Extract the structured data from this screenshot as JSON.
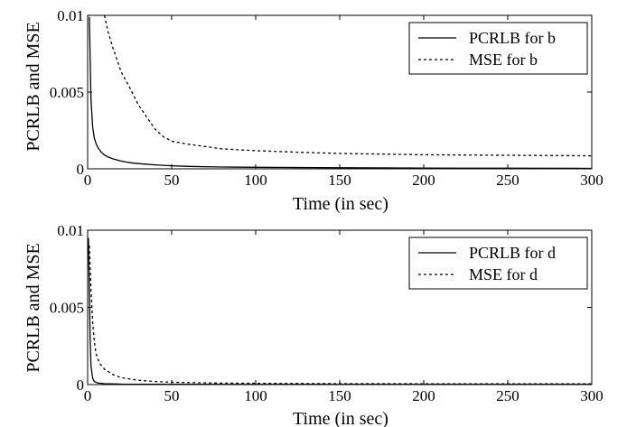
{
  "chart_data": [
    {
      "type": "line",
      "xlabel": "Time (in sec)",
      "ylabel": "PCRLB and MSE",
      "xlim": [
        0,
        300
      ],
      "ylim": [
        0,
        0.01
      ],
      "xticks": [
        "0",
        "50",
        "100",
        "150",
        "200",
        "250",
        "300"
      ],
      "yticks": [
        "0",
        "0.005",
        "0.01"
      ],
      "legend_position": "top-right",
      "series": [
        {
          "name": "PCRLB for b",
          "style": "solid",
          "x": [
            1,
            2,
            3,
            4,
            5,
            6,
            8,
            10,
            12,
            15,
            20,
            25,
            30,
            40,
            50,
            60,
            80,
            100,
            150,
            200,
            250,
            300
          ],
          "y": [
            0.0099,
            0.0045,
            0.0027,
            0.002,
            0.00165,
            0.0014,
            0.0011,
            0.0009,
            0.00078,
            0.00065,
            0.0005,
            0.0004,
            0.00034,
            0.00026,
            0.0002,
            0.00016,
            0.00012,
            0.0001,
            7e-05,
            5e-05,
            4e-05,
            3e-05
          ]
        },
        {
          "name": "MSE for b",
          "style": "dashed",
          "x": [
            10,
            12,
            15,
            20,
            25,
            30,
            35,
            40,
            45,
            50,
            60,
            70,
            80,
            100,
            125,
            150,
            200,
            250,
            300
          ],
          "y": [
            0.01,
            0.009,
            0.0079,
            0.0063,
            0.0053,
            0.0042,
            0.0034,
            0.0026,
            0.0021,
            0.0018,
            0.0016,
            0.00145,
            0.0013,
            0.00118,
            0.00108,
            0.001,
            0.00092,
            0.00088,
            0.00085
          ]
        }
      ]
    },
    {
      "type": "line",
      "xlabel": "Time (in sec)",
      "ylabel": "PCRLB and MSE",
      "xlim": [
        0,
        300
      ],
      "ylim": [
        0,
        0.01
      ],
      "xticks": [
        "0",
        "50",
        "100",
        "150",
        "200",
        "250",
        "300"
      ],
      "yticks": [
        "0",
        "0.005",
        "0.01"
      ],
      "legend_position": "top-right",
      "series": [
        {
          "name": "PCRLB for d",
          "style": "solid",
          "x": [
            0.5,
            1,
            1.5,
            2,
            3,
            4,
            6,
            10,
            20,
            50,
            100,
            200,
            300
          ],
          "y": [
            0.0095,
            0.006,
            0.003,
            0.0012,
            0.0004,
            0.0002,
            0.0001,
            6e-05,
            3e-05,
            2e-05,
            1e-05,
            1e-05,
            1e-05
          ]
        },
        {
          "name": "MSE for d",
          "style": "dashed",
          "x": [
            1,
            2,
            3,
            4,
            5,
            7,
            10,
            15,
            20,
            30,
            40,
            50,
            75,
            100,
            150,
            200,
            250,
            300
          ],
          "y": [
            0.009,
            0.0062,
            0.004,
            0.0028,
            0.002,
            0.0014,
            0.001,
            0.00065,
            0.00045,
            0.00028,
            0.0002,
            0.00015,
            0.0001,
            8e-05,
            6e-05,
            5e-05,
            5e-05,
            5e-05
          ]
        }
      ]
    }
  ]
}
